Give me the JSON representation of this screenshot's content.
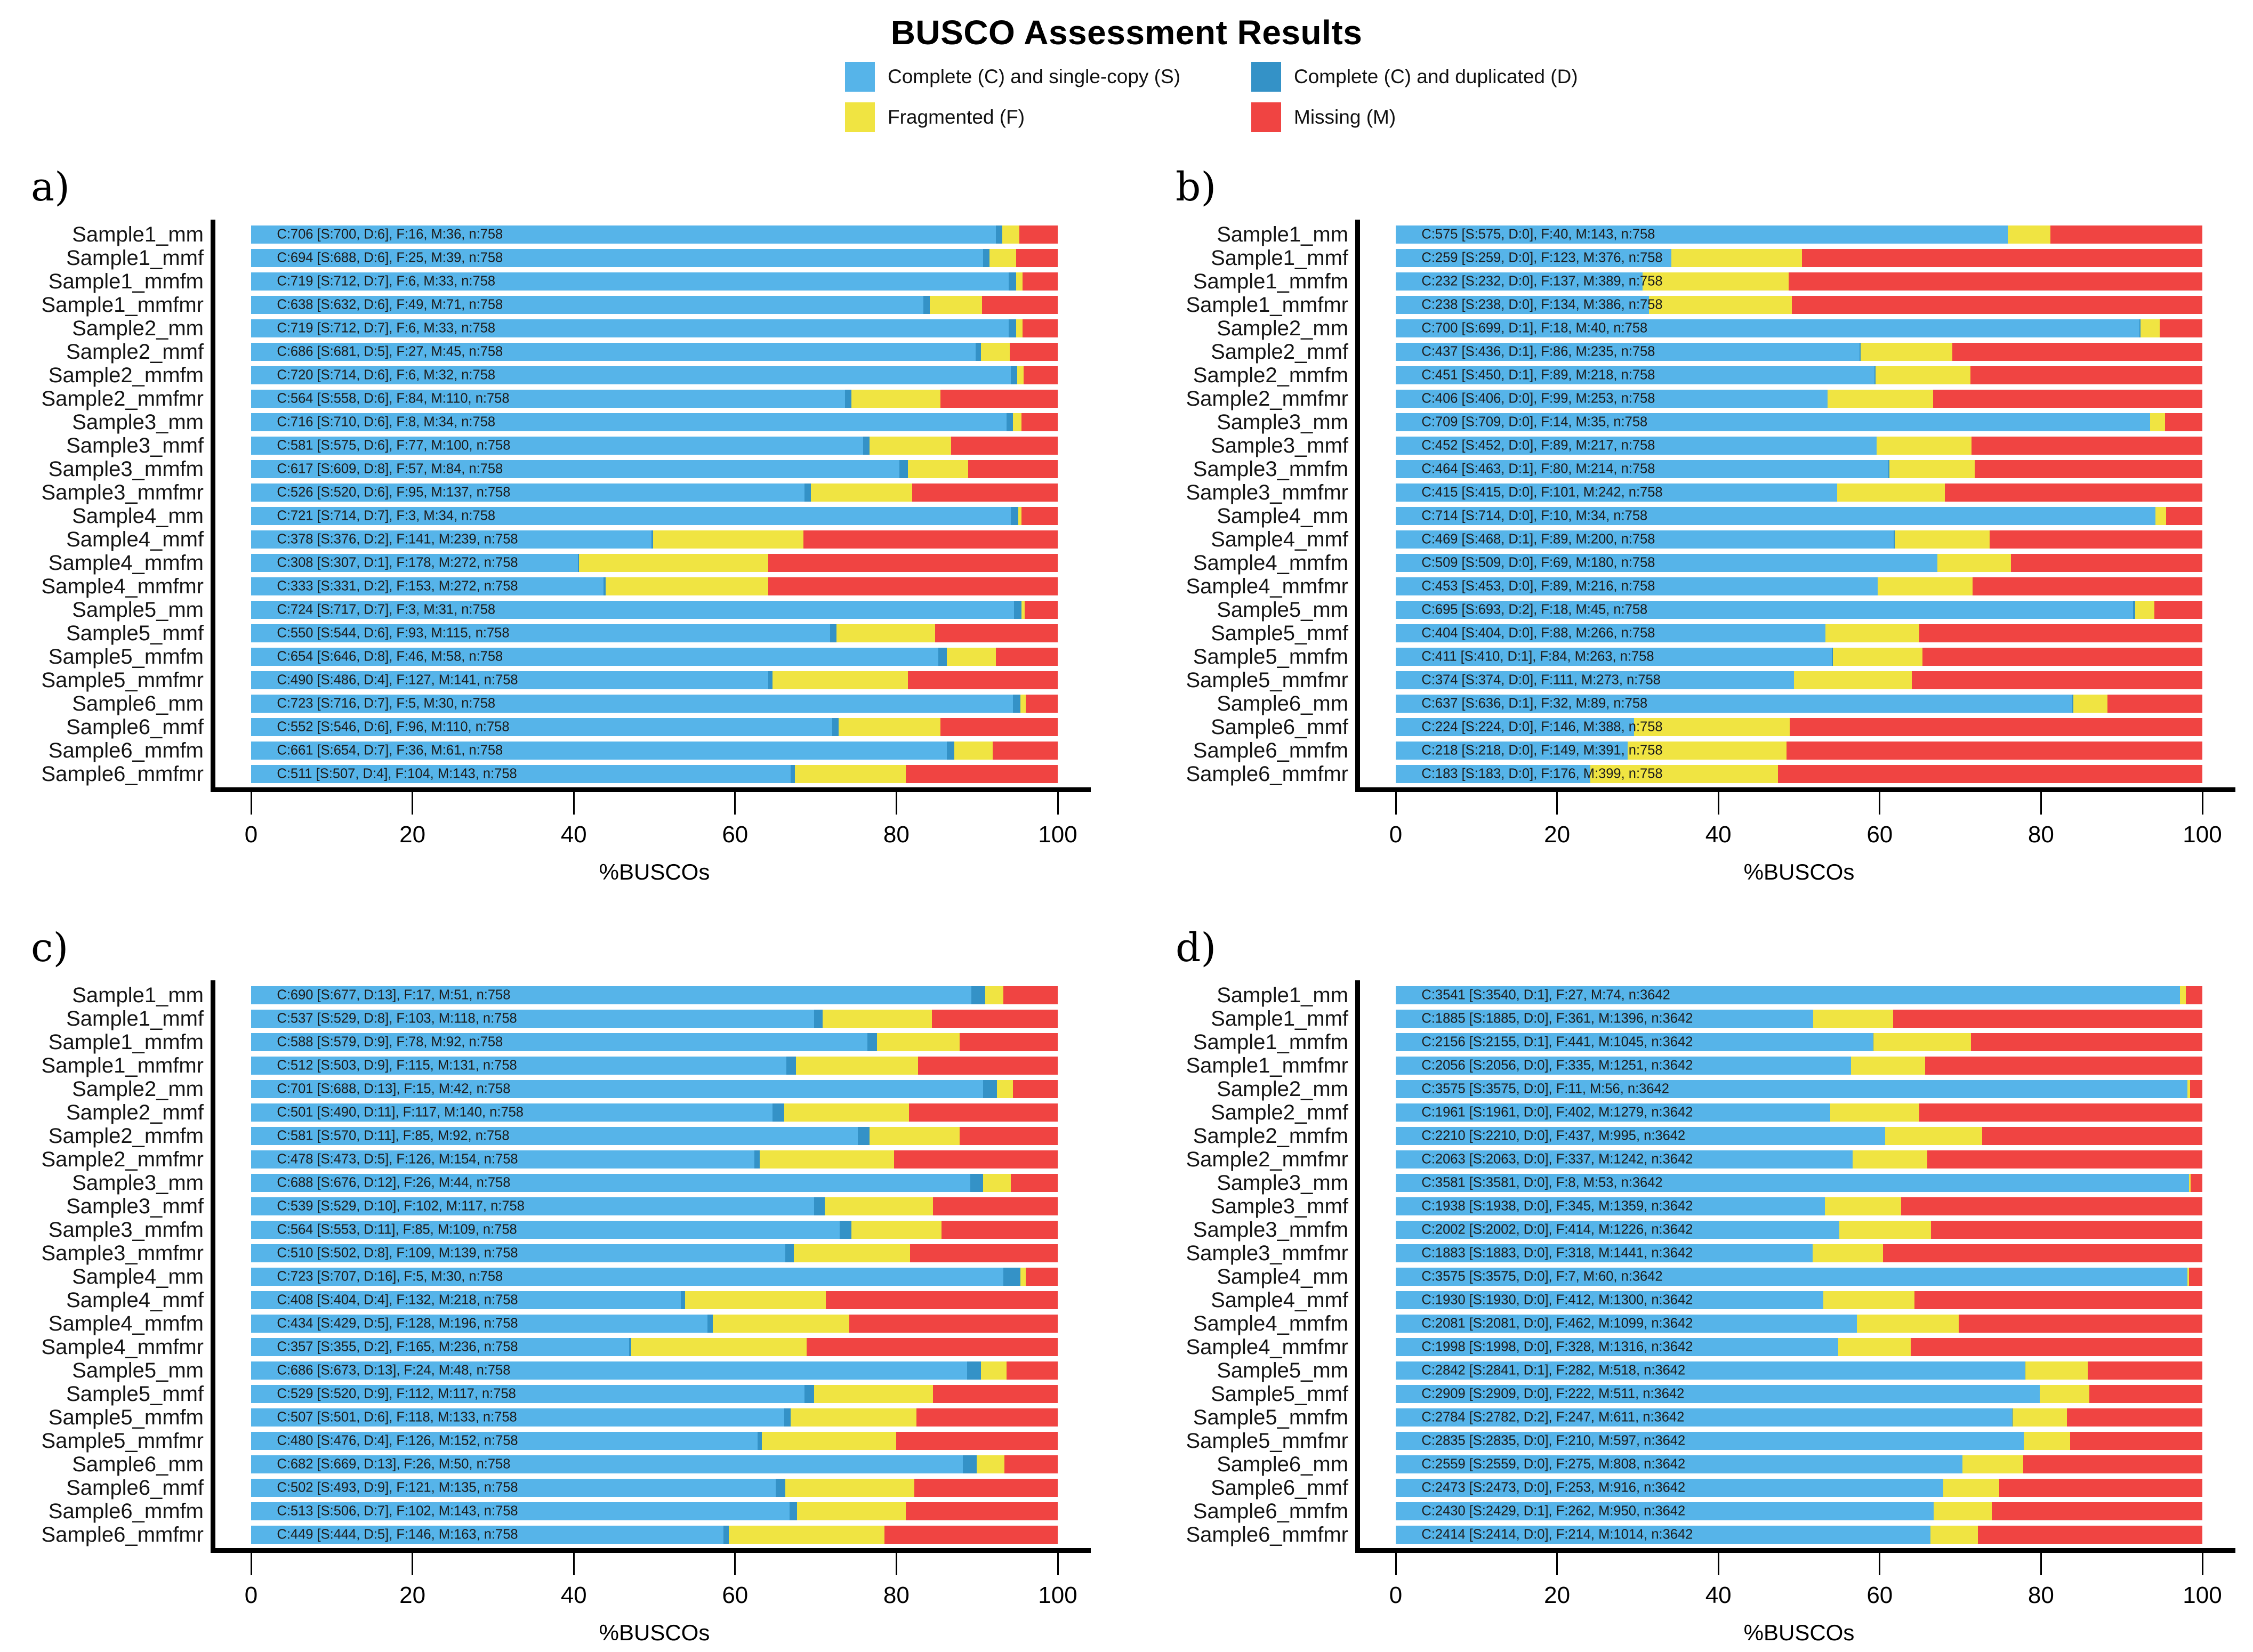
{
  "title": "BUSCO Assessment Results",
  "legend": {
    "items": [
      {
        "key": "S",
        "label": "Complete (C) and single-copy (S)",
        "color": "#56B4E9"
      },
      {
        "key": "D",
        "label": "Complete (C) and duplicated (D)",
        "color": "#3492C7"
      },
      {
        "key": "F",
        "label": "Fragmented (F)",
        "color": "#F0E442"
      },
      {
        "key": "M",
        "label": "Missing (M)",
        "color": "#F04442"
      }
    ]
  },
  "axis": {
    "xlabel": "%BUSCOs",
    "ticks": [
      0,
      20,
      40,
      60,
      80,
      100
    ],
    "xlim": [
      0,
      100
    ]
  },
  "bar_label_format": "C:{C} [S:{S}, D:{D}], F:{F}, M:{M}, n:{n}",
  "chart_data": [
    {
      "panel": "a)",
      "type": "bar",
      "stacked": true,
      "orientation": "horizontal",
      "n": 758,
      "series_order": [
        "S",
        "D",
        "F",
        "M"
      ],
      "rows": [
        {
          "label": "Sample1_mm",
          "C": 706,
          "S": 700,
          "D": 6,
          "F": 16,
          "M": 36
        },
        {
          "label": "Sample1_mmf",
          "C": 694,
          "S": 688,
          "D": 6,
          "F": 25,
          "M": 39
        },
        {
          "label": "Sample1_mmfm",
          "C": 719,
          "S": 712,
          "D": 7,
          "F": 6,
          "M": 33
        },
        {
          "label": "Sample1_mmfmr",
          "C": 638,
          "S": 632,
          "D": 6,
          "F": 49,
          "M": 71
        },
        {
          "label": "Sample2_mm",
          "C": 719,
          "S": 712,
          "D": 7,
          "F": 6,
          "M": 33
        },
        {
          "label": "Sample2_mmf",
          "C": 686,
          "S": 681,
          "D": 5,
          "F": 27,
          "M": 45
        },
        {
          "label": "Sample2_mmfm",
          "C": 720,
          "S": 714,
          "D": 6,
          "F": 6,
          "M": 32
        },
        {
          "label": "Sample2_mmfmr",
          "C": 564,
          "S": 558,
          "D": 6,
          "F": 84,
          "M": 110
        },
        {
          "label": "Sample3_mm",
          "C": 716,
          "S": 710,
          "D": 6,
          "F": 8,
          "M": 34
        },
        {
          "label": "Sample3_mmf",
          "C": 581,
          "S": 575,
          "D": 6,
          "F": 77,
          "M": 100
        },
        {
          "label": "Sample3_mmfm",
          "C": 617,
          "S": 609,
          "D": 8,
          "F": 57,
          "M": 84
        },
        {
          "label": "Sample3_mmfmr",
          "C": 526,
          "S": 520,
          "D": 6,
          "F": 95,
          "M": 137
        },
        {
          "label": "Sample4_mm",
          "C": 721,
          "S": 714,
          "D": 7,
          "F": 3,
          "M": 34
        },
        {
          "label": "Sample4_mmf",
          "C": 378,
          "S": 376,
          "D": 2,
          "F": 141,
          "M": 239
        },
        {
          "label": "Sample4_mmfm",
          "C": 308,
          "S": 307,
          "D": 1,
          "F": 178,
          "M": 272
        },
        {
          "label": "Sample4_mmfmr",
          "C": 333,
          "S": 331,
          "D": 2,
          "F": 153,
          "M": 272
        },
        {
          "label": "Sample5_mm",
          "C": 724,
          "S": 717,
          "D": 7,
          "F": 3,
          "M": 31
        },
        {
          "label": "Sample5_mmf",
          "C": 550,
          "S": 544,
          "D": 6,
          "F": 93,
          "M": 115
        },
        {
          "label": "Sample5_mmfm",
          "C": 654,
          "S": 646,
          "D": 8,
          "F": 46,
          "M": 58
        },
        {
          "label": "Sample5_mmfmr",
          "C": 490,
          "S": 486,
          "D": 4,
          "F": 127,
          "M": 141
        },
        {
          "label": "Sample6_mm",
          "C": 723,
          "S": 716,
          "D": 7,
          "F": 5,
          "M": 30
        },
        {
          "label": "Sample6_mmf",
          "C": 552,
          "S": 546,
          "D": 6,
          "F": 96,
          "M": 110
        },
        {
          "label": "Sample6_mmfm",
          "C": 661,
          "S": 654,
          "D": 7,
          "F": 36,
          "M": 61
        },
        {
          "label": "Sample6_mmfmr",
          "C": 511,
          "S": 507,
          "D": 4,
          "F": 104,
          "M": 143
        }
      ]
    },
    {
      "panel": "b)",
      "type": "bar",
      "stacked": true,
      "orientation": "horizontal",
      "n": 758,
      "series_order": [
        "S",
        "D",
        "F",
        "M"
      ],
      "rows": [
        {
          "label": "Sample1_mm",
          "C": 575,
          "S": 575,
          "D": 0,
          "F": 40,
          "M": 143
        },
        {
          "label": "Sample1_mmf",
          "C": 259,
          "S": 259,
          "D": 0,
          "F": 123,
          "M": 376
        },
        {
          "label": "Sample1_mmfm",
          "C": 232,
          "S": 232,
          "D": 0,
          "F": 137,
          "M": 389
        },
        {
          "label": "Sample1_mmfmr",
          "C": 238,
          "S": 238,
          "D": 0,
          "F": 134,
          "M": 386
        },
        {
          "label": "Sample2_mm",
          "C": 700,
          "S": 699,
          "D": 1,
          "F": 18,
          "M": 40
        },
        {
          "label": "Sample2_mmf",
          "C": 437,
          "S": 436,
          "D": 1,
          "F": 86,
          "M": 235
        },
        {
          "label": "Sample2_mmfm",
          "C": 451,
          "S": 450,
          "D": 1,
          "F": 89,
          "M": 218
        },
        {
          "label": "Sample2_mmfmr",
          "C": 406,
          "S": 406,
          "D": 0,
          "F": 99,
          "M": 253
        },
        {
          "label": "Sample3_mm",
          "C": 709,
          "S": 709,
          "D": 0,
          "F": 14,
          "M": 35
        },
        {
          "label": "Sample3_mmf",
          "C": 452,
          "S": 452,
          "D": 0,
          "F": 89,
          "M": 217
        },
        {
          "label": "Sample3_mmfm",
          "C": 464,
          "S": 463,
          "D": 1,
          "F": 80,
          "M": 214
        },
        {
          "label": "Sample3_mmfmr",
          "C": 415,
          "S": 415,
          "D": 0,
          "F": 101,
          "M": 242
        },
        {
          "label": "Sample4_mm",
          "C": 714,
          "S": 714,
          "D": 0,
          "F": 10,
          "M": 34
        },
        {
          "label": "Sample4_mmf",
          "C": 469,
          "S": 468,
          "D": 1,
          "F": 89,
          "M": 200
        },
        {
          "label": "Sample4_mmfm",
          "C": 509,
          "S": 509,
          "D": 0,
          "F": 69,
          "M": 180
        },
        {
          "label": "Sample4_mmfmr",
          "C": 453,
          "S": 453,
          "D": 0,
          "F": 89,
          "M": 216
        },
        {
          "label": "Sample5_mm",
          "C": 695,
          "S": 693,
          "D": 2,
          "F": 18,
          "M": 45
        },
        {
          "label": "Sample5_mmf",
          "C": 404,
          "S": 404,
          "D": 0,
          "F": 88,
          "M": 266
        },
        {
          "label": "Sample5_mmfm",
          "C": 411,
          "S": 410,
          "D": 1,
          "F": 84,
          "M": 263
        },
        {
          "label": "Sample5_mmfmr",
          "C": 374,
          "S": 374,
          "D": 0,
          "F": 111,
          "M": 273
        },
        {
          "label": "Sample6_mm",
          "C": 637,
          "S": 636,
          "D": 1,
          "F": 32,
          "M": 89
        },
        {
          "label": "Sample6_mmf",
          "C": 224,
          "S": 224,
          "D": 0,
          "F": 146,
          "M": 388
        },
        {
          "label": "Sample6_mmfm",
          "C": 218,
          "S": 218,
          "D": 0,
          "F": 149,
          "M": 391
        },
        {
          "label": "Sample6_mmfmr",
          "C": 183,
          "S": 183,
          "D": 0,
          "F": 176,
          "M": 399
        }
      ]
    },
    {
      "panel": "c)",
      "type": "bar",
      "stacked": true,
      "orientation": "horizontal",
      "n": 758,
      "series_order": [
        "S",
        "D",
        "F",
        "M"
      ],
      "rows": [
        {
          "label": "Sample1_mm",
          "C": 690,
          "S": 677,
          "D": 13,
          "F": 17,
          "M": 51
        },
        {
          "label": "Sample1_mmf",
          "C": 537,
          "S": 529,
          "D": 8,
          "F": 103,
          "M": 118
        },
        {
          "label": "Sample1_mmfm",
          "C": 588,
          "S": 579,
          "D": 9,
          "F": 78,
          "M": 92
        },
        {
          "label": "Sample1_mmfmr",
          "C": 512,
          "S": 503,
          "D": 9,
          "F": 115,
          "M": 131
        },
        {
          "label": "Sample2_mm",
          "C": 701,
          "S": 688,
          "D": 13,
          "F": 15,
          "M": 42
        },
        {
          "label": "Sample2_mmf",
          "C": 501,
          "S": 490,
          "D": 11,
          "F": 117,
          "M": 140
        },
        {
          "label": "Sample2_mmfm",
          "C": 581,
          "S": 570,
          "D": 11,
          "F": 85,
          "M": 92
        },
        {
          "label": "Sample2_mmfmr",
          "C": 478,
          "S": 473,
          "D": 5,
          "F": 126,
          "M": 154
        },
        {
          "label": "Sample3_mm",
          "C": 688,
          "S": 676,
          "D": 12,
          "F": 26,
          "M": 44
        },
        {
          "label": "Sample3_mmf",
          "C": 539,
          "S": 529,
          "D": 10,
          "F": 102,
          "M": 117
        },
        {
          "label": "Sample3_mmfm",
          "C": 564,
          "S": 553,
          "D": 11,
          "F": 85,
          "M": 109
        },
        {
          "label": "Sample3_mmfmr",
          "C": 510,
          "S": 502,
          "D": 8,
          "F": 109,
          "M": 139
        },
        {
          "label": "Sample4_mm",
          "C": 723,
          "S": 707,
          "D": 16,
          "F": 5,
          "M": 30
        },
        {
          "label": "Sample4_mmf",
          "C": 408,
          "S": 404,
          "D": 4,
          "F": 132,
          "M": 218
        },
        {
          "label": "Sample4_mmfm",
          "C": 434,
          "S": 429,
          "D": 5,
          "F": 128,
          "M": 196
        },
        {
          "label": "Sample4_mmfmr",
          "C": 357,
          "S": 355,
          "D": 2,
          "F": 165,
          "M": 236
        },
        {
          "label": "Sample5_mm",
          "C": 686,
          "S": 673,
          "D": 13,
          "F": 24,
          "M": 48
        },
        {
          "label": "Sample5_mmf",
          "C": 529,
          "S": 520,
          "D": 9,
          "F": 112,
          "M": 117
        },
        {
          "label": "Sample5_mmfm",
          "C": 507,
          "S": 501,
          "D": 6,
          "F": 118,
          "M": 133
        },
        {
          "label": "Sample5_mmfmr",
          "C": 480,
          "S": 476,
          "D": 4,
          "F": 126,
          "M": 152
        },
        {
          "label": "Sample6_mm",
          "C": 682,
          "S": 669,
          "D": 13,
          "F": 26,
          "M": 50
        },
        {
          "label": "Sample6_mmf",
          "C": 502,
          "S": 493,
          "D": 9,
          "F": 121,
          "M": 135
        },
        {
          "label": "Sample6_mmfm",
          "C": 513,
          "S": 506,
          "D": 7,
          "F": 102,
          "M": 143
        },
        {
          "label": "Sample6_mmfmr",
          "C": 449,
          "S": 444,
          "D": 5,
          "F": 146,
          "M": 163
        }
      ]
    },
    {
      "panel": "d)",
      "type": "bar",
      "stacked": true,
      "orientation": "horizontal",
      "n": 3642,
      "series_order": [
        "S",
        "D",
        "F",
        "M"
      ],
      "rows": [
        {
          "label": "Sample1_mm",
          "C": 3541,
          "S": 3540,
          "D": 1,
          "F": 27,
          "M": 74
        },
        {
          "label": "Sample1_mmf",
          "C": 1885,
          "S": 1885,
          "D": 0,
          "F": 361,
          "M": 1396
        },
        {
          "label": "Sample1_mmfm",
          "C": 2156,
          "S": 2155,
          "D": 1,
          "F": 441,
          "M": 1045
        },
        {
          "label": "Sample1_mmfmr",
          "C": 2056,
          "S": 2056,
          "D": 0,
          "F": 335,
          "M": 1251
        },
        {
          "label": "Sample2_mm",
          "C": 3575,
          "S": 3575,
          "D": 0,
          "F": 11,
          "M": 56
        },
        {
          "label": "Sample2_mmf",
          "C": 1961,
          "S": 1961,
          "D": 0,
          "F": 402,
          "M": 1279
        },
        {
          "label": "Sample2_mmfm",
          "C": 2210,
          "S": 2210,
          "D": 0,
          "F": 437,
          "M": 995
        },
        {
          "label": "Sample2_mmfmr",
          "C": 2063,
          "S": 2063,
          "D": 0,
          "F": 337,
          "M": 1242
        },
        {
          "label": "Sample3_mm",
          "C": 3581,
          "S": 3581,
          "D": 0,
          "F": 8,
          "M": 53
        },
        {
          "label": "Sample3_mmf",
          "C": 1938,
          "S": 1938,
          "D": 0,
          "F": 345,
          "M": 1359
        },
        {
          "label": "Sample3_mmfm",
          "C": 2002,
          "S": 2002,
          "D": 0,
          "F": 414,
          "M": 1226
        },
        {
          "label": "Sample3_mmfmr",
          "C": 1883,
          "S": 1883,
          "D": 0,
          "F": 318,
          "M": 1441
        },
        {
          "label": "Sample4_mm",
          "C": 3575,
          "S": 3575,
          "D": 0,
          "F": 7,
          "M": 60
        },
        {
          "label": "Sample4_mmf",
          "C": 1930,
          "S": 1930,
          "D": 0,
          "F": 412,
          "M": 1300
        },
        {
          "label": "Sample4_mmfm",
          "C": 2081,
          "S": 2081,
          "D": 0,
          "F": 462,
          "M": 1099
        },
        {
          "label": "Sample4_mmfmr",
          "C": 1998,
          "S": 1998,
          "D": 0,
          "F": 328,
          "M": 1316
        },
        {
          "label": "Sample5_mm",
          "C": 2842,
          "S": 2841,
          "D": 1,
          "F": 282,
          "M": 518
        },
        {
          "label": "Sample5_mmf",
          "C": 2909,
          "S": 2909,
          "D": 0,
          "F": 222,
          "M": 511
        },
        {
          "label": "Sample5_mmfm",
          "C": 2784,
          "S": 2782,
          "D": 2,
          "F": 247,
          "M": 611
        },
        {
          "label": "Sample5_mmfmr",
          "C": 2835,
          "S": 2835,
          "D": 0,
          "F": 210,
          "M": 597
        },
        {
          "label": "Sample6_mm",
          "C": 2559,
          "S": 2559,
          "D": 0,
          "F": 275,
          "M": 808
        },
        {
          "label": "Sample6_mmf",
          "C": 2473,
          "S": 2473,
          "D": 0,
          "F": 253,
          "M": 916
        },
        {
          "label": "Sample6_mmfm",
          "C": 2430,
          "S": 2429,
          "D": 1,
          "F": 262,
          "M": 950
        },
        {
          "label": "Sample6_mmfmr",
          "C": 2414,
          "S": 2414,
          "D": 0,
          "F": 214,
          "M": 1014
        }
      ]
    }
  ]
}
